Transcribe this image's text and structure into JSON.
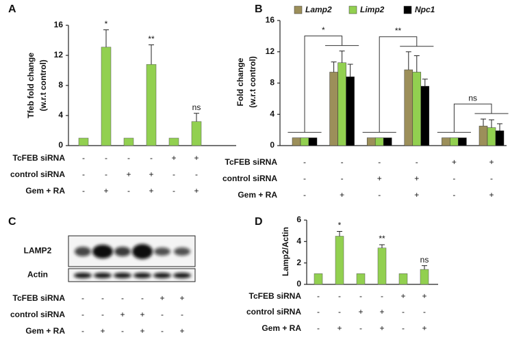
{
  "chart_data": [
    {
      "type": "bar",
      "panel_label": "A",
      "y_label": [
        "Tfeb fold change",
        "(w.r.t  control)"
      ],
      "values": [
        1,
        13.1,
        1,
        10.8,
        1,
        3.2
      ],
      "errors": [
        0,
        2.3,
        0,
        2.6,
        0,
        1.1
      ],
      "annotations": [
        null,
        "*",
        null,
        "**",
        null,
        "ns"
      ],
      "color": "#92d050",
      "ylim": [
        0,
        16
      ],
      "yticks": [
        0,
        4,
        8,
        12,
        16
      ],
      "conditions": [
        {
          "name": "TcFEB siRNA",
          "signs": [
            "-",
            "-",
            "-",
            "-",
            "+",
            "+"
          ]
        },
        {
          "name": "control siRNA",
          "signs": [
            "-",
            "-",
            "+",
            "+",
            "-",
            "-"
          ]
        },
        {
          "name": "Gem + RA",
          "signs": [
            "-",
            "+",
            "-",
            "+",
            "-",
            "+"
          ]
        }
      ]
    },
    {
      "type": "grouped_bar",
      "panel_label": "B",
      "y_label": [
        "Fold change",
        "(w.r.t  control)"
      ],
      "series": [
        {
          "name": "Lamp2",
          "color": "#9c8f5a",
          "values": [
            1,
            9.4,
            1,
            9.7,
            1,
            2.5
          ],
          "errors": [
            0,
            1.3,
            0,
            2.3,
            0,
            0.9
          ]
        },
        {
          "name": "Limp2",
          "color": "#92d050",
          "values": [
            1,
            10.6,
            1,
            9.4,
            1,
            2.3
          ],
          "errors": [
            0,
            1.5,
            0,
            2.1,
            0,
            1.0
          ]
        },
        {
          "name": "Npc1",
          "color": "#000000",
          "values": [
            1,
            8.8,
            1,
            7.6,
            1,
            1.9
          ],
          "errors": [
            0,
            1.6,
            0,
            0.9,
            0,
            0.9
          ]
        }
      ],
      "comparisons": [
        "*",
        "**",
        "ns"
      ],
      "ylim": [
        0,
        16
      ],
      "yticks": [
        0,
        4,
        8,
        12,
        16
      ],
      "conditions": [
        {
          "name": "TcFEB siRNA",
          "signs": [
            "-",
            "-",
            "-",
            "-",
            "+",
            "+"
          ]
        },
        {
          "name": "control siRNA",
          "signs": [
            "-",
            "-",
            "+",
            "+",
            "-",
            "-"
          ]
        },
        {
          "name": "Gem + RA",
          "signs": [
            "-",
            "+",
            "-",
            "+",
            "-",
            "+"
          ]
        }
      ]
    },
    {
      "type": "bar",
      "panel_label": "D",
      "y_label": [
        "Lamp2/Actin"
      ],
      "values": [
        1,
        4.5,
        1,
        3.4,
        1,
        1.4
      ],
      "errors": [
        0,
        0.45,
        0,
        0.3,
        0,
        0.35
      ],
      "annotations": [
        null,
        "*",
        null,
        "**",
        null,
        "ns"
      ],
      "color": "#92d050",
      "ylim": [
        0,
        6
      ],
      "yticks": [
        0,
        2,
        4,
        6
      ],
      "conditions": [
        {
          "name": "TcFEB siRNA",
          "signs": [
            "-",
            "-",
            "-",
            "-",
            "+",
            "+"
          ]
        },
        {
          "name": "control siRNA",
          "signs": [
            "-",
            "-",
            "+",
            "+",
            "-",
            "-"
          ]
        },
        {
          "name": "Gem + RA",
          "signs": [
            "-",
            "+",
            "-",
            "+",
            "-",
            "+"
          ]
        }
      ]
    }
  ],
  "blot": {
    "panel_label": "C",
    "bands": [
      "LAMP2",
      "Actin"
    ],
    "conditions": [
      {
        "name": "TcFEB siRNA",
        "signs": [
          "-",
          "-",
          "-",
          "-",
          "+",
          "+"
        ]
      },
      {
        "name": "control siRNA",
        "signs": [
          "-",
          "-",
          "+",
          "+",
          "-",
          "-"
        ]
      },
      {
        "name": "Gem + RA",
        "signs": [
          "-",
          "+",
          "-",
          "+",
          "-",
          "+"
        ]
      }
    ]
  }
}
